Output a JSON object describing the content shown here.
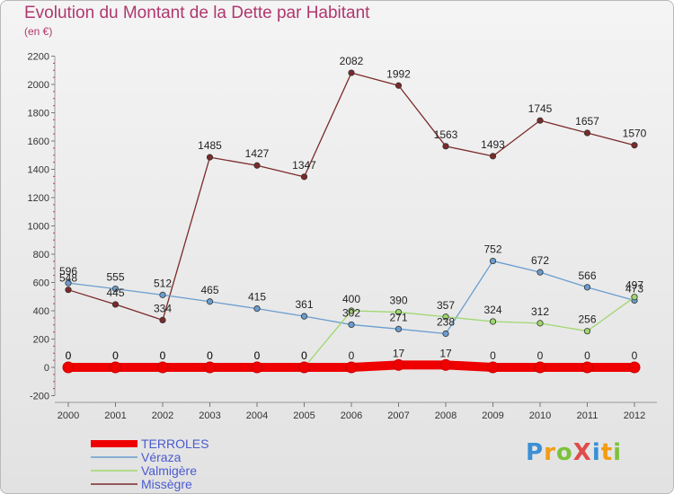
{
  "title": "Evolution du Montant de la Dette par Habitant",
  "subtitle": "(en €)",
  "logo": {
    "text": "ProXiti",
    "colors": [
      "#3a8fd6",
      "#f39c12",
      "#7cc23a",
      "#e04b4b",
      "#3a8fd6",
      "#f39c12",
      "#7cc23a"
    ]
  },
  "chart_data": {
    "type": "line",
    "title": "Evolution du Montant de la Dette par Habitant",
    "subtitle": "(en €)",
    "xlabel": "",
    "ylabel": "",
    "x": [
      "2000",
      "2001",
      "2002",
      "2003",
      "2004",
      "2005",
      "2006",
      "2007",
      "2008",
      "2009",
      "2010",
      "2011",
      "2012"
    ],
    "ylim": [
      -200,
      2200
    ],
    "yticks": [
      -200,
      0,
      200,
      400,
      600,
      800,
      1000,
      1200,
      1400,
      1600,
      1800,
      2000,
      2200
    ],
    "grid": false,
    "legend_position": "bottom-left",
    "series": [
      {
        "name": "TERROLES",
        "color": "#ee0000",
        "values": [
          0,
          0,
          0,
          0,
          0,
          0,
          0,
          17,
          17,
          0,
          0,
          0,
          0
        ],
        "labels": [
          "0",
          "0",
          "0",
          "0",
          "0",
          "0",
          "0",
          "17",
          "17",
          "0",
          "0",
          "0",
          "0"
        ]
      },
      {
        "name": "Véraza",
        "color": "#6a9dcf",
        "values": [
          596,
          555,
          512,
          465,
          415,
          361,
          302,
          271,
          238,
          752,
          672,
          566,
          473
        ],
        "labels": [
          "596",
          "555",
          "512",
          "465",
          "415",
          "361",
          "302",
          "271",
          "238",
          "752",
          "672",
          "566",
          "473"
        ]
      },
      {
        "name": "Valmigère",
        "color": "#9fd76f",
        "values": [
          0,
          0,
          0,
          0,
          0,
          0,
          400,
          390,
          357,
          324,
          312,
          256,
          497
        ],
        "labels": [
          "0",
          "0",
          "0",
          "0",
          "0",
          "0",
          "400",
          "390",
          "357",
          "324",
          "312",
          "256",
          "497"
        ]
      },
      {
        "name": "Missègre",
        "color": "#7b2a2a",
        "values": [
          548,
          445,
          334,
          1485,
          1427,
          1347,
          2082,
          1992,
          1563,
          1493,
          1745,
          1657,
          1570
        ],
        "labels": [
          "548",
          "445",
          "334",
          "1485",
          "1427",
          "1347",
          "2082",
          "1992",
          "1563",
          "1493",
          "1745",
          "1657",
          "1570"
        ]
      }
    ]
  }
}
